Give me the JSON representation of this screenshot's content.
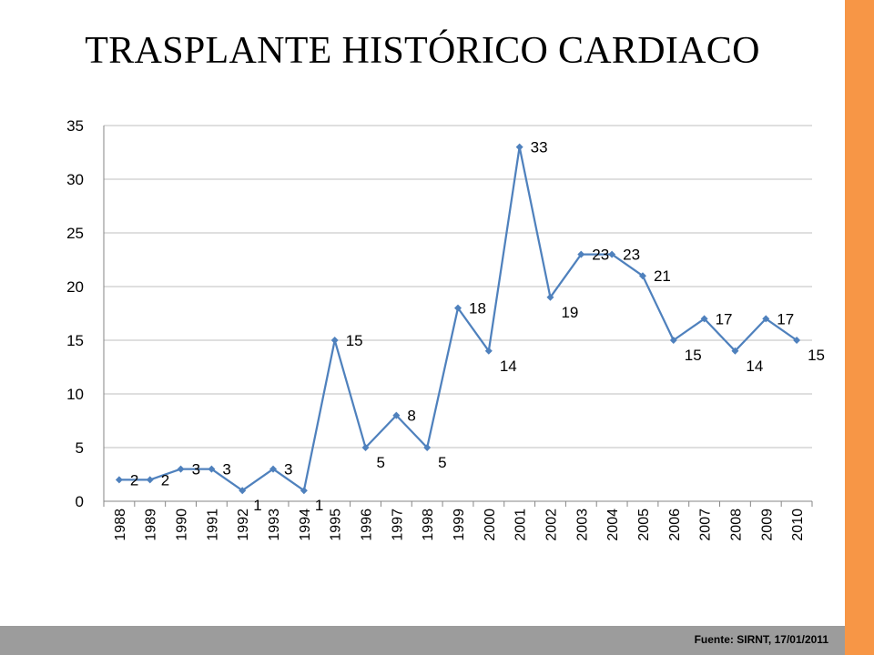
{
  "slide": {
    "title": "TRASPLANTE HISTÓRICO CARDIACO",
    "source": "Fuente: SIRNT, 17/01/2011"
  },
  "colors": {
    "series": "#4f81bd",
    "grid": "#bfbfbf",
    "accent_bar": "#f79646",
    "footer_bar": "#9c9c9c"
  },
  "chart_data": {
    "type": "line",
    "title": "",
    "xlabel": "",
    "ylabel": "",
    "ylim": [
      0,
      35
    ],
    "yticks": [
      0,
      5,
      10,
      15,
      20,
      25,
      30,
      35
    ],
    "grid": true,
    "legend": "none",
    "categories": [
      "1988",
      "1989",
      "1990",
      "1991",
      "1992",
      "1993",
      "1994",
      "1995",
      "1996",
      "1997",
      "1998",
      "1999",
      "2000",
      "2001",
      "2002",
      "2003",
      "2004",
      "2005",
      "2006",
      "2007",
      "2008",
      "2009",
      "2010"
    ],
    "series": [
      {
        "name": "",
        "values": [
          2,
          2,
          3,
          3,
          1,
          3,
          1,
          15,
          5,
          8,
          5,
          18,
          14,
          33,
          19,
          23,
          23,
          21,
          15,
          17,
          14,
          17,
          15
        ]
      }
    ]
  }
}
